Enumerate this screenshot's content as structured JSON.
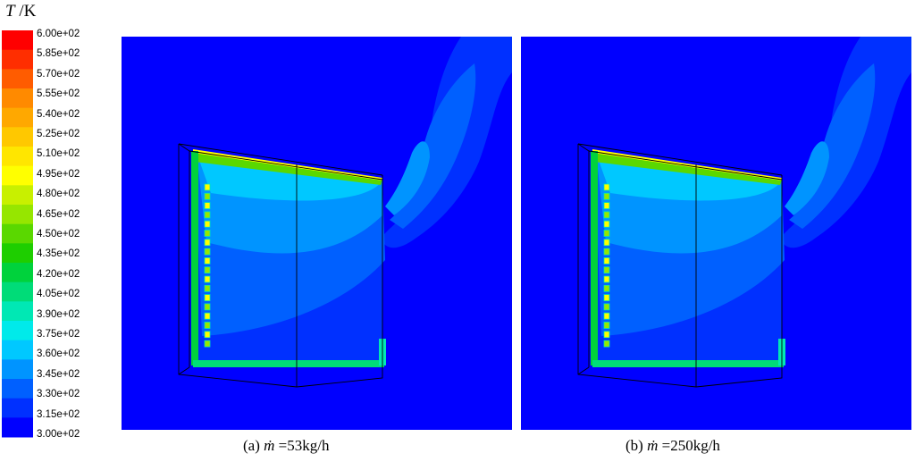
{
  "chart_data": {
    "type": "heatmap",
    "title": "",
    "colorbar": {
      "variable": "T",
      "unit": "K",
      "ticks": [
        "6.00e+02",
        "5.85e+02",
        "5.70e+02",
        "5.55e+02",
        "5.40e+02",
        "5.25e+02",
        "5.10e+02",
        "4.95e+02",
        "4.80e+02",
        "4.65e+02",
        "4.50e+02",
        "4.35e+02",
        "4.20e+02",
        "4.05e+02",
        "3.90e+02",
        "3.75e+02",
        "3.60e+02",
        "3.45e+02",
        "3.30e+02",
        "3.15e+02",
        "3.00e+02"
      ],
      "range": [
        300,
        600
      ],
      "colors": [
        "#ff0000",
        "#ff2e00",
        "#ff5c00",
        "#ff8a00",
        "#ffa800",
        "#ffc800",
        "#ffe600",
        "#ffff00",
        "#c8f000",
        "#96e600",
        "#5ad800",
        "#1ece00",
        "#00d23c",
        "#00dc78",
        "#00e8b4",
        "#00eaea",
        "#00c8ff",
        "#0094ff",
        "#0060ff",
        "#0030ff",
        "#0000ff"
      ]
    },
    "panels": [
      {
        "label": "(a)",
        "symbol": "ṁ",
        "value_text": " =53kg/h"
      },
      {
        "label": "(b)",
        "symbol": "ṁ",
        "value_text": " =250kg/h"
      }
    ]
  }
}
